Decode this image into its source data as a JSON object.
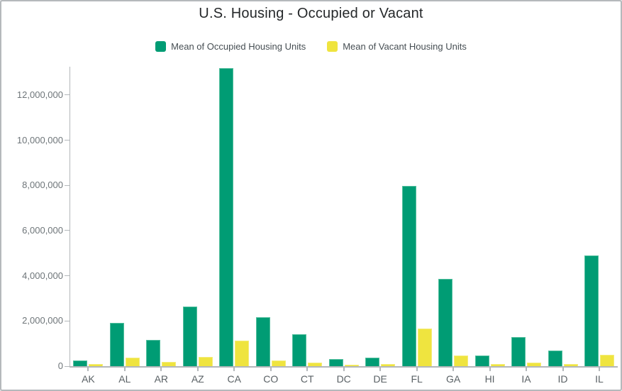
{
  "title": "U.S. Housing - Occupied or Vacant",
  "legend": [
    {
      "label": "Mean of Occupied Housing Units",
      "color": "#009c74",
      "swatch_icon": "green-square-icon"
    },
    {
      "label": "Mean of Vacant Housing Units",
      "color": "#efe43f",
      "swatch_icon": "yellow-square-icon"
    }
  ],
  "colors": {
    "occupied_series": "#009c74",
    "vacant_series": "#efe43f",
    "axis": "#b3b7ba"
  },
  "chart_data": {
    "type": "bar",
    "title": "U.S. Housing - Occupied or Vacant",
    "xlabel": "",
    "ylabel": "",
    "grid": false,
    "legend_position": "top",
    "ylim": [
      0,
      13300000
    ],
    "yticks": [
      0,
      2000000,
      4000000,
      6000000,
      8000000,
      10000000,
      12000000
    ],
    "ytick_labels": [
      "0",
      "2,000,000",
      "4,000,000",
      "6,000,000",
      "8,000,000",
      "10,000,000",
      "12,000,000"
    ],
    "categories": [
      "AK",
      "AL",
      "AR",
      "AZ",
      "CA",
      "CO",
      "CT",
      "DC",
      "DE",
      "FL",
      "GA",
      "HI",
      "IA",
      "ID",
      "IL"
    ],
    "series": [
      {
        "name": "Mean of Occupied Housing Units",
        "color": "#009c74",
        "values": [
          250000,
          1920000,
          1170000,
          2650000,
          13190000,
          2160000,
          1410000,
          300000,
          390000,
          7980000,
          3870000,
          480000,
          1290000,
          680000,
          4900000
        ]
      },
      {
        "name": "Mean of Vacant Housing Units",
        "color": "#efe43f",
        "values": [
          90000,
          380000,
          200000,
          420000,
          1130000,
          260000,
          170000,
          60000,
          90000,
          1660000,
          480000,
          90000,
          150000,
          100000,
          500000
        ]
      }
    ]
  }
}
